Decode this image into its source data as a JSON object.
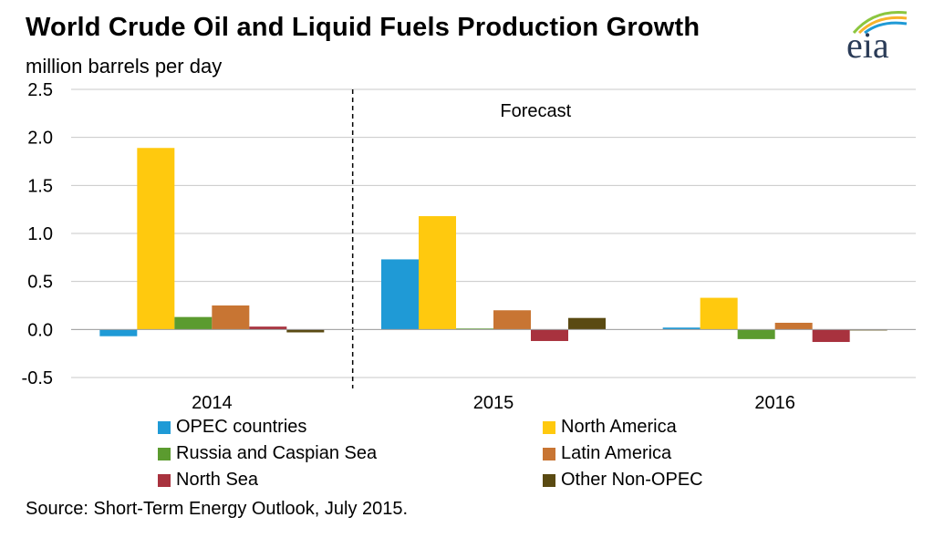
{
  "title": "World Crude Oil and Liquid Fuels Production Growth",
  "subtitle": "million barrels per day",
  "logo": {
    "text": "eia"
  },
  "source": "Source: Short-Term Energy Outlook, July 2015.",
  "colors": {
    "OPEC countries": "#1f9ad6",
    "North America": "#ffc90e",
    "Russia and Caspian Sea": "#5b9b2f",
    "Latin America": "#c87533",
    "North Sea": "#a8323e",
    "Other Non-OPEC": "#5a4a12",
    "logo_arc1": "#8cc63f",
    "logo_arc2": "#f7b32b",
    "logo_arc3": "#1f9ad6"
  },
  "chart_data": {
    "type": "bar",
    "title": "World Crude Oil and Liquid Fuels Production Growth",
    "ylabel": "million barrels per day",
    "xlabel": "",
    "categories": [
      "2014",
      "2015",
      "2016"
    ],
    "ylim": [
      -0.5,
      2.5
    ],
    "yticks": [
      "2.5",
      "2.0",
      "1.5",
      "1.0",
      "0.5",
      "0.0",
      "-0.5"
    ],
    "ytick_values": [
      2.5,
      2.0,
      1.5,
      1.0,
      0.5,
      0.0,
      -0.5
    ],
    "grid": true,
    "annotation": "Forecast",
    "series": [
      {
        "name": "OPEC countries",
        "values": [
          -0.07,
          0.73,
          0.02
        ]
      },
      {
        "name": "North America",
        "values": [
          1.89,
          1.18,
          0.33
        ]
      },
      {
        "name": "Russia and Caspian Sea",
        "values": [
          0.13,
          0.01,
          -0.1
        ]
      },
      {
        "name": "Latin America",
        "values": [
          0.25,
          0.2,
          0.07
        ]
      },
      {
        "name": "North Sea",
        "values": [
          0.03,
          -0.12,
          -0.13
        ]
      },
      {
        "name": "Other Non-OPEC",
        "values": [
          -0.03,
          0.12,
          -0.01
        ]
      }
    ]
  }
}
